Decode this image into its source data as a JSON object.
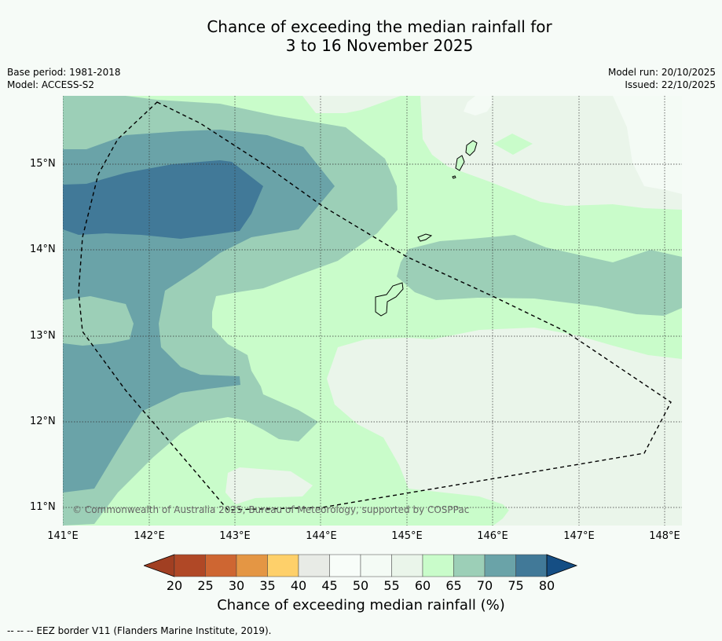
{
  "title": {
    "line1": "Chance of exceeding the median rainfall for",
    "line2": "3 to 16 November 2025"
  },
  "meta": {
    "base_period": "Base period: 1981-2018",
    "model": "Model: ACCESS-S2",
    "model_run": "Model run: 20/10/2025",
    "issued": "Issued: 22/10/2025"
  },
  "map": {
    "x_ticks": [
      "141°E",
      "142°E",
      "143°E",
      "144°E",
      "145°E",
      "146°E",
      "147°E",
      "148°E"
    ],
    "y_ticks": [
      "15°N",
      "14°N",
      "13°N",
      "12°N",
      "11°N"
    ],
    "credit": "© Commonwealth of Australia 2025, Bureau of Meteorology, supported by COSPPac"
  },
  "colorbar": {
    "ticks": [
      "20",
      "25",
      "30",
      "35",
      "40",
      "45",
      "50",
      "55",
      "60",
      "65",
      "70",
      "75",
      "80"
    ],
    "colors": [
      "#b04826",
      "#ce6632",
      "#e49644",
      "#fed06a",
      "#e8ebe6",
      "#f8fdf9",
      "#f4fbf5",
      "#eaf5ea",
      "#c9fcca",
      "#9ccfb7",
      "#6aa3a8",
      "#417998"
    ],
    "low_extend_color": "#a13f22",
    "high_extend_color": "#154e84",
    "label": "Chance of exceeding median rainfall (%)"
  },
  "footnote": "--  --  -- EEZ border V11 (Flanders Marine Institute, 2019)."
}
